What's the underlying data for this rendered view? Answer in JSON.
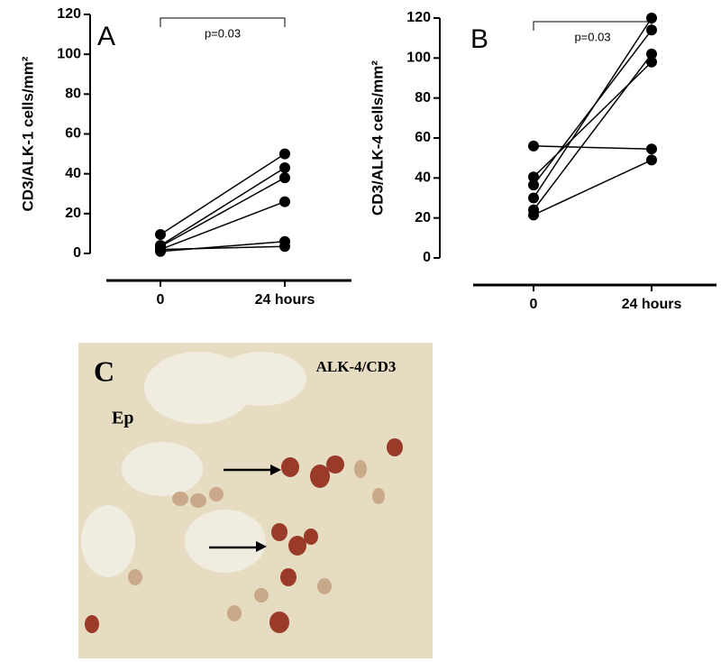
{
  "chart_data": [
    {
      "type": "paired-line",
      "title": "A",
      "y_label": "CD3/ALK-1 cells/mm²",
      "annotation": "p=0.03",
      "categories": [
        "0",
        "24 hours"
      ],
      "ylim": [
        0,
        120
      ],
      "yticks": [
        0,
        20,
        40,
        60,
        80,
        100,
        120
      ],
      "color": "#000000",
      "series": [
        {
          "values": [
            9.5,
            50
          ]
        },
        {
          "values": [
            4,
            43
          ]
        },
        {
          "values": [
            3.5,
            38
          ]
        },
        {
          "values": [
            2,
            26
          ]
        },
        {
          "values": [
            1,
            6
          ]
        },
        {
          "values": [
            2,
            3.5
          ]
        }
      ]
    },
    {
      "type": "paired-line",
      "title": "B",
      "y_label": "CD3/ALK-4 cells/mm²",
      "annotation": "p=0.03",
      "categories": [
        "0",
        "24 hours"
      ],
      "ylim": [
        0,
        120
      ],
      "yticks": [
        0,
        20,
        40,
        60,
        80,
        100,
        120
      ],
      "color": "#000000",
      "series": [
        {
          "values": [
            56,
            54.5
          ]
        },
        {
          "values": [
            40.5,
            98
          ]
        },
        {
          "values": [
            36.5,
            114
          ]
        },
        {
          "values": [
            30,
            120
          ]
        },
        {
          "values": [
            24,
            102
          ]
        },
        {
          "values": [
            21.5,
            49
          ]
        }
      ]
    }
  ],
  "image": {
    "label": "C",
    "tissue_label": "Ep",
    "stain_label": "ALK-4/CD3"
  }
}
